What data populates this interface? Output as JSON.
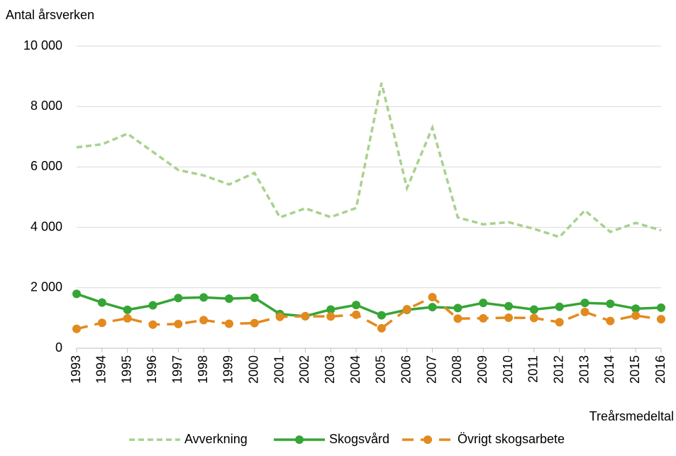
{
  "chart_data": {
    "type": "line",
    "y_axis_title": "Antal årsverken",
    "x_axis_title": "Treårsmedeltal",
    "categories": [
      "1993",
      "1994",
      "1995",
      "1996",
      "1997",
      "1998",
      "1999",
      "2000",
      "2001",
      "2002",
      "2003",
      "2004",
      "2005",
      "2006",
      "2007",
      "2008",
      "2009",
      "2010",
      "2011",
      "2012",
      "2013",
      "2014",
      "2015",
      "2016"
    ],
    "series": [
      {
        "name": "Avverkning",
        "color": "#a9d18e",
        "dash": "dashed",
        "marker": false,
        "values": [
          6650,
          6750,
          7100,
          6500,
          5900,
          5720,
          5420,
          5800,
          4330,
          4630,
          4340,
          4640,
          8780,
          5300,
          7300,
          4330,
          4100,
          4170,
          3950,
          3680,
          4560,
          3850,
          4150,
          3900
        ]
      },
      {
        "name": "Skogsvård",
        "color": "#35a535",
        "dash": "solid",
        "marker": true,
        "values": [
          1800,
          1510,
          1270,
          1420,
          1660,
          1680,
          1640,
          1670,
          1130,
          1060,
          1280,
          1430,
          1090,
          1270,
          1360,
          1330,
          1500,
          1390,
          1280,
          1370,
          1500,
          1470,
          1310,
          1340
        ]
      },
      {
        "name": "Övrigt skogsarbete",
        "color": "#e38a1f",
        "dash": "longdash",
        "marker": true,
        "values": [
          640,
          840,
          990,
          780,
          800,
          930,
          810,
          830,
          1040,
          1060,
          1050,
          1110,
          660,
          1290,
          1690,
          980,
          990,
          1010,
          1000,
          860,
          1200,
          900,
          1080,
          960
        ]
      }
    ],
    "ylim": [
      0,
      10000
    ],
    "yticks": [
      0,
      {
        "value": 2000,
        "label": "2 000"
      },
      {
        "value": 4000,
        "label": "4 000"
      },
      {
        "value": 6000,
        "label": "6 000"
      },
      {
        "value": 8000,
        "label": "8 000"
      },
      {
        "value": 10000,
        "label": "10 000"
      }
    ],
    "grid": true,
    "legend": "bottom"
  }
}
